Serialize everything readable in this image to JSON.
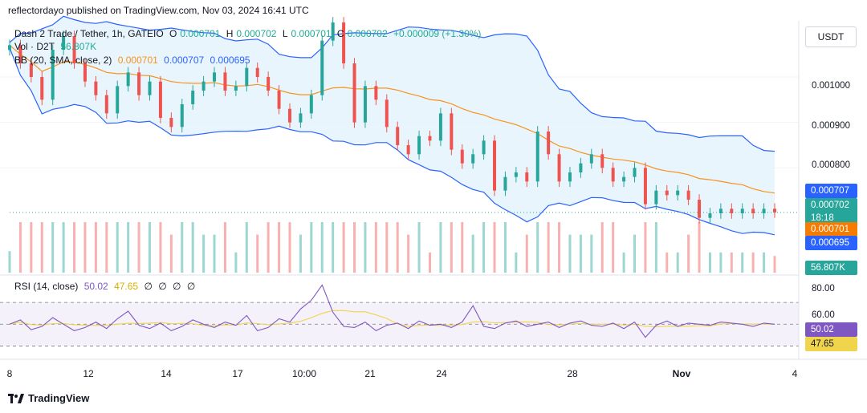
{
  "header": {
    "published_line": "reflectordayo published on TradingView.com, Nov 03, 2024 16:41 UTC"
  },
  "legend": {
    "symbol": "Dash 2 Trade / Tether, 1h, GATEIO",
    "o_label": "O",
    "o_value": "0.000701",
    "h_label": "H",
    "h_value": "0.000702",
    "l_label": "L",
    "l_value": "0.000701",
    "c_label": "C",
    "c_value": "0.000702",
    "change": "+0.000009 (+1.30%)",
    "vol_label": "Vol · D2T",
    "vol_value": "56.807K",
    "bb_label": "BB (20, SMA, close, 2)",
    "bb_basis": "0.000701",
    "bb_upper": "0.000707",
    "bb_lower": "0.000695"
  },
  "rsi_legend": {
    "label": "RSI (14, close)",
    "rsi_value": "50.02",
    "ma_value": "47.65",
    "placeholders": [
      "∅",
      "∅",
      "∅",
      "∅"
    ]
  },
  "currency_button": "USDT",
  "price_axis": {
    "ticks": [
      "0.001000",
      "0.000900",
      "0.000800"
    ],
    "tags": {
      "bb_upper": "0.000707",
      "last_price": "0.000702",
      "countdown": "18:18",
      "bb_basis": "0.000701",
      "bb_lower": "0.000695",
      "volume": "56.807K"
    }
  },
  "rsi_axis": {
    "ticks": [
      "80.00",
      "60.00"
    ],
    "tags": {
      "rsi": "50.02",
      "ma": "47.65"
    }
  },
  "time_axis": {
    "ticks": [
      "8",
      "12",
      "14",
      "17",
      "10:00",
      "21",
      "24",
      "28",
      "Nov",
      "4"
    ]
  },
  "brand": "TradingView",
  "colors": {
    "up": "#26a69a",
    "down": "#ef5350",
    "basis": "#f7931a",
    "bands": "#2962ff",
    "band_fill": "#e3f2fd",
    "rsi": "#7e57c2",
    "rsi_ma": "#f0d44c",
    "rsi_zone": "#ede7f6"
  },
  "chart_data": {
    "type": "candlestick",
    "interval": "1h",
    "y_range": [
      0.00064,
      0.00112
    ],
    "x_ticks": [
      "8",
      "12",
      "14",
      "17",
      "10:00",
      "21",
      "24",
      "28",
      "Nov",
      "4"
    ],
    "closes": [
      0.00107,
      0.00103,
      0.001,
      0.00095,
      0.00106,
      0.00109,
      0.00103,
      0.00099,
      0.00096,
      0.00092,
      0.00098,
      0.00101,
      0.00096,
      0.00099,
      0.00091,
      0.00089,
      0.00094,
      0.00097,
      0.00099,
      0.00101,
      0.00097,
      0.00098,
      0.00102,
      0.001,
      0.00097,
      0.00093,
      0.0009,
      0.00092,
      0.00096,
      0.00108,
      0.00112,
      0.00103,
      0.0009,
      0.00098,
      0.00095,
      0.00089,
      0.00085,
      0.00083,
      0.00087,
      0.00086,
      0.00092,
      0.00084,
      0.00081,
      0.00083,
      0.00086,
      0.00075,
      0.00078,
      0.00079,
      0.00077,
      0.00088,
      0.00083,
      0.00077,
      0.00079,
      0.00081,
      0.00083,
      0.0008,
      0.00077,
      0.00078,
      0.0008,
      0.00072,
      0.00075,
      0.00074,
      0.00075,
      0.00073,
      0.00069,
      0.0007,
      0.00071,
      0.0007,
      0.00071,
      0.0007,
      0.00071,
      0.000702
    ],
    "volume_last": "56.807K",
    "bollinger": {
      "period": 20,
      "stddev": 2,
      "basis_last": 0.000701,
      "upper_last": 0.000707,
      "lower_last": 0.000695
    },
    "rsi": {
      "period": 14,
      "last": 50.02,
      "ma_last": 47.65,
      "levels": [
        70,
        50,
        30
      ],
      "y_range": [
        20,
        90
      ],
      "values": [
        50,
        54,
        45,
        48,
        56,
        50,
        44,
        47,
        52,
        46,
        55,
        62,
        49,
        46,
        51,
        44,
        48,
        54,
        50,
        47,
        52,
        49,
        58,
        44,
        47,
        55,
        52,
        64,
        72,
        86,
        61,
        48,
        47,
        52,
        44,
        49,
        51,
        46,
        53,
        49,
        50,
        47,
        52,
        67,
        48,
        46,
        51,
        53,
        48,
        50,
        52,
        47,
        51,
        53,
        49,
        48,
        51,
        46,
        52,
        38,
        49,
        53,
        48,
        51,
        50,
        49,
        52,
        51,
        50,
        48,
        51,
        50.02
      ]
    }
  }
}
